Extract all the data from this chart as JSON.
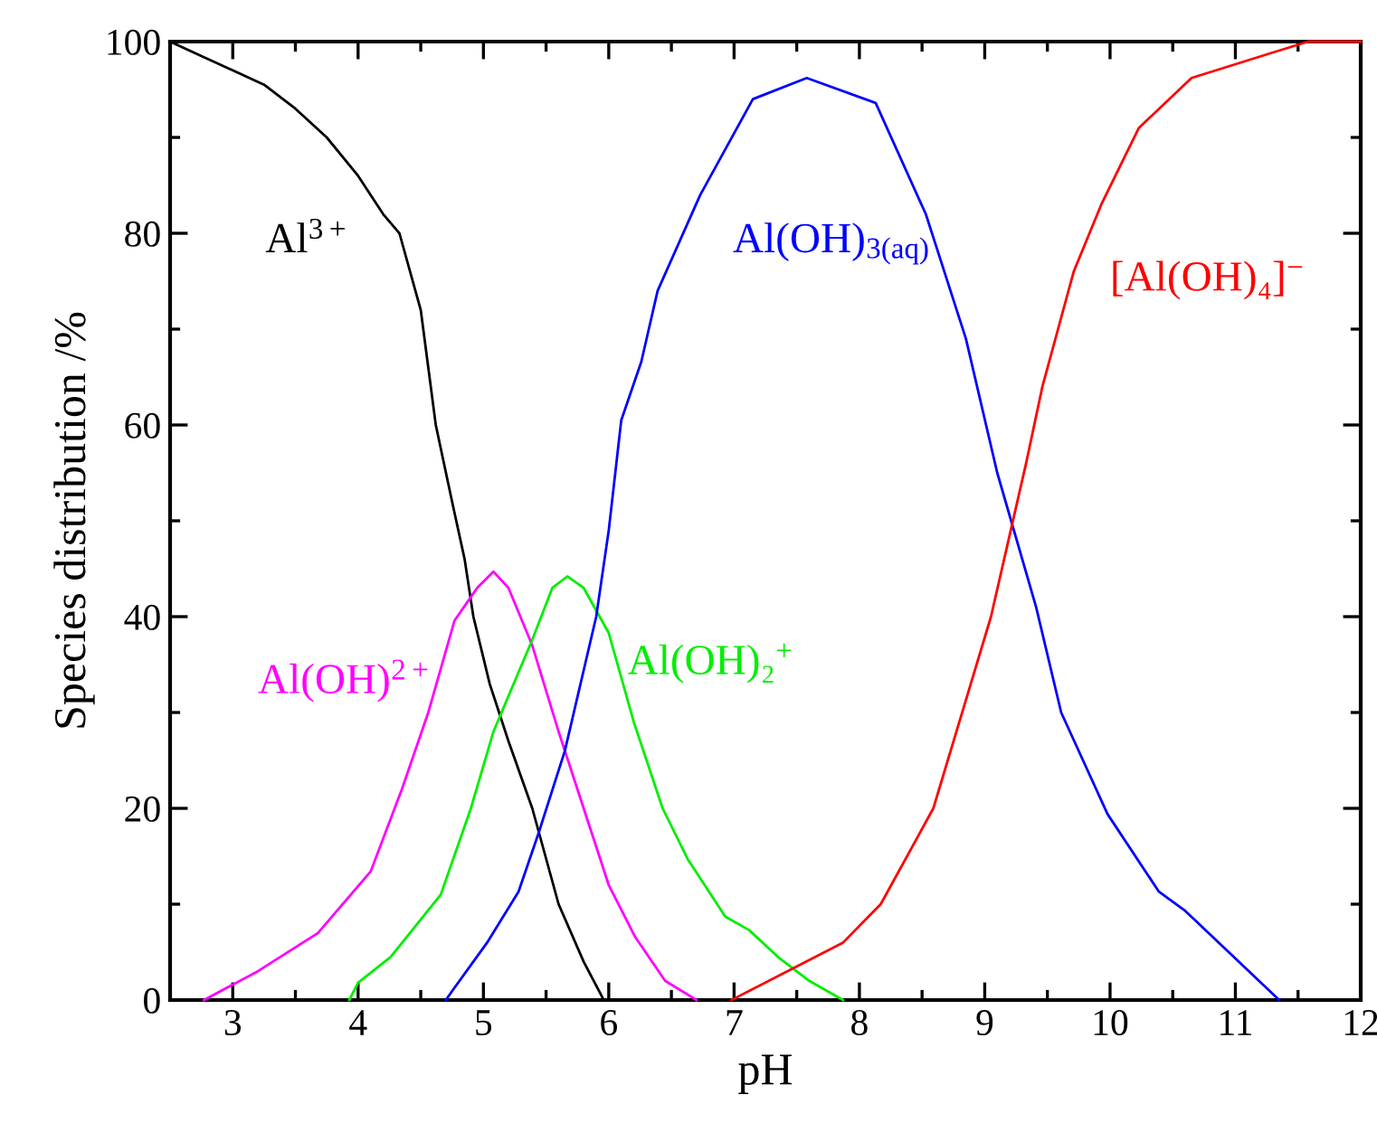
{
  "chart_data": {
    "type": "line",
    "xlabel": "pH",
    "ylabel": "Species distribution /%",
    "xlim": [
      2.5,
      12
    ],
    "ylim": [
      0,
      100
    ],
    "xticks": [
      3,
      4,
      5,
      6,
      7,
      8,
      9,
      10,
      11,
      12
    ],
    "yticks": [
      0,
      20,
      40,
      60,
      80,
      100
    ],
    "grid": false,
    "legend": false,
    "marker": "none",
    "line_style": "solid",
    "series": [
      {
        "name": "Al$^{3+}$",
        "color": "#000000",
        "x": [
          2.5,
          2.75,
          3.0,
          3.25,
          3.5,
          3.75,
          4.0,
          4.2,
          4.33,
          4.5,
          4.62,
          4.75,
          4.85,
          4.92,
          5.05,
          5.2,
          5.39,
          5.6,
          5.8,
          5.96
        ],
        "values": [
          100,
          98.5,
          97,
          95.5,
          93,
          90,
          86,
          82,
          80,
          72,
          60,
          52,
          46,
          40,
          33,
          27,
          20,
          10,
          4,
          0
        ]
      },
      {
        "name": "Al(OH)$^{2+}$",
        "color": "#ff00ff",
        "x": [
          2.77,
          3.2,
          3.68,
          4.1,
          4.35,
          4.56,
          4.77,
          4.95,
          5.08,
          5.2,
          5.39,
          5.6,
          5.8,
          6.0,
          6.21,
          6.45,
          6.7
        ],
        "values": [
          0,
          3,
          7,
          13.4,
          22,
          30,
          39.6,
          43,
          44.7,
          43,
          37,
          28,
          20,
          12,
          6.6,
          2,
          0
        ]
      },
      {
        "name": "Al(OH)₂$^{+}$",
        "color": "#00ee00",
        "x": [
          3.93,
          4.0,
          4.26,
          4.66,
          4.9,
          5.08,
          5.39,
          5.55,
          5.67,
          5.8,
          6.0,
          6.2,
          6.43,
          6.63,
          6.93,
          7.12,
          7.35,
          7.6,
          7.87
        ],
        "values": [
          0,
          1.8,
          4.5,
          11,
          20,
          28,
          37.6,
          43,
          44.2,
          43,
          38.3,
          29,
          20,
          14.7,
          8.7,
          7.3,
          4.5,
          2,
          0
        ]
      },
      {
        "name": "Al(OH)$_{3(aq)}$",
        "color": "#0000ff",
        "x": [
          4.7,
          4.77,
          5.03,
          5.28,
          5.44,
          5.65,
          5.9,
          6.0,
          6.1,
          6.26,
          6.39,
          6.73,
          7.15,
          7.58,
          8.13,
          8.53,
          8.85,
          9.1,
          9.41,
          9.61,
          9.98,
          10.39,
          10.6,
          11.35
        ],
        "values": [
          0,
          1.3,
          6,
          11.3,
          17.4,
          26,
          40,
          49,
          60.5,
          66.6,
          74,
          84,
          94,
          96.2,
          93.6,
          82,
          69,
          55,
          41,
          30,
          19.4,
          11.3,
          9.3,
          0
        ]
      },
      {
        "name": "[Al(OH)₄]$^{−}$",
        "color": "#ff0000",
        "x": [
          6.98,
          7.87,
          8.17,
          8.59,
          9.05,
          9.33,
          9.46,
          9.71,
          9.93,
          10.23,
          10.65,
          11.26,
          11.58,
          12.0
        ],
        "values": [
          0,
          6,
          10,
          20,
          40,
          56,
          64,
          76,
          83,
          91,
          96.2,
          98.7,
          100,
          100
        ]
      }
    ]
  }
}
